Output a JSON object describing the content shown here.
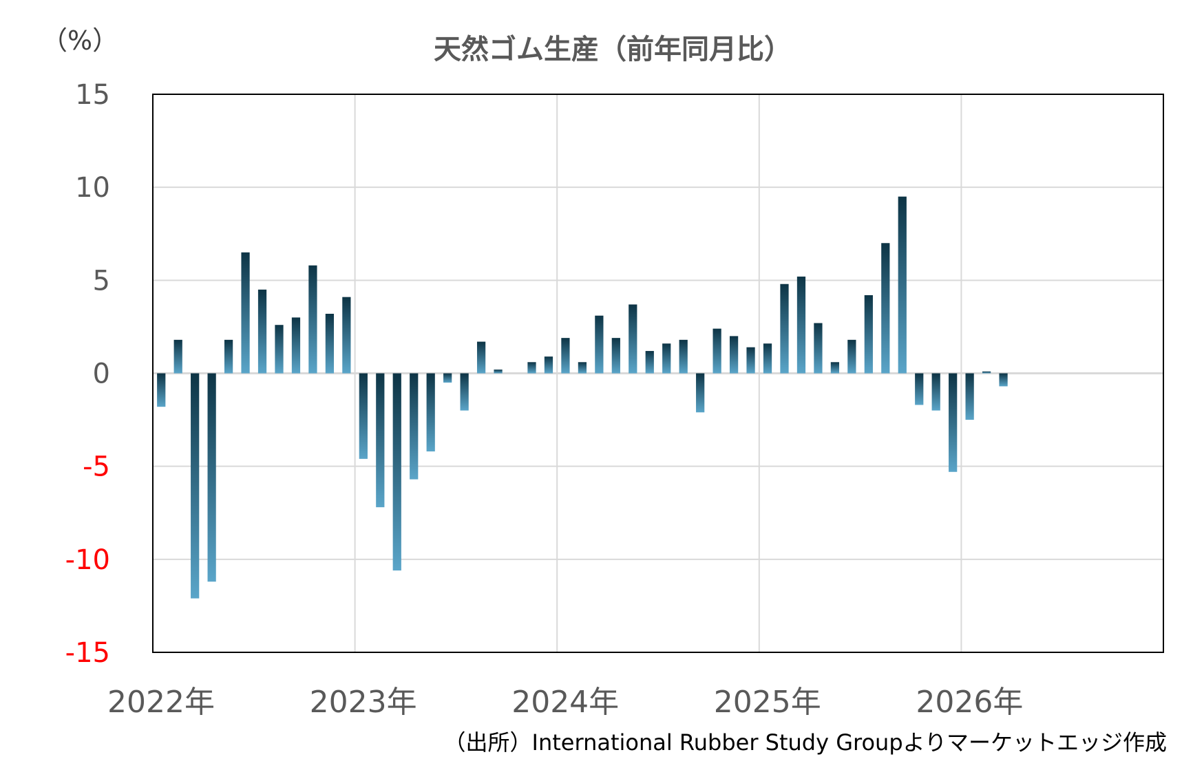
{
  "chart_data": {
    "type": "bar",
    "title": "天然ゴム生産（前年同月比）",
    "unit_label": "（%）",
    "source": "（出所）International Rubber Study Groupよりマーケットエッジ作成",
    "ylim": [
      -15,
      15
    ],
    "yticks": [
      "15",
      "10",
      "5",
      "0",
      "-5",
      "-10",
      "-15"
    ],
    "ytick_values": [
      15,
      10,
      5,
      0,
      -5,
      -10,
      -15
    ],
    "year_labels": [
      "2022年",
      "2023年",
      "2024年",
      "2025年",
      "2026年"
    ],
    "months_total": 60,
    "grid": true,
    "colors": {
      "positive_tick": "#595959",
      "negative_tick": "#ff0000",
      "bar_dark": "#0d3445",
      "bar_light": "#5aa5c9",
      "grid": "#d9d9d9",
      "axis": "#000000"
    },
    "values": [
      -1.8,
      1.8,
      -12.1,
      -11.2,
      1.8,
      6.5,
      4.5,
      2.6,
      3.0,
      5.8,
      3.2,
      4.1,
      -4.6,
      -7.2,
      -10.6,
      -5.7,
      -4.2,
      -0.5,
      -2.0,
      1.7,
      0.2,
      0.0,
      0.6,
      0.9,
      1.9,
      0.6,
      3.1,
      1.9,
      3.7,
      1.2,
      1.6,
      1.8,
      -2.1,
      2.4,
      2.0,
      1.4,
      1.6,
      4.8,
      5.2,
      2.7,
      0.6,
      1.8,
      4.2,
      7.0,
      9.5,
      -1.7,
      -2.0,
      -5.3,
      -2.5,
      0.1,
      -0.7
    ]
  }
}
